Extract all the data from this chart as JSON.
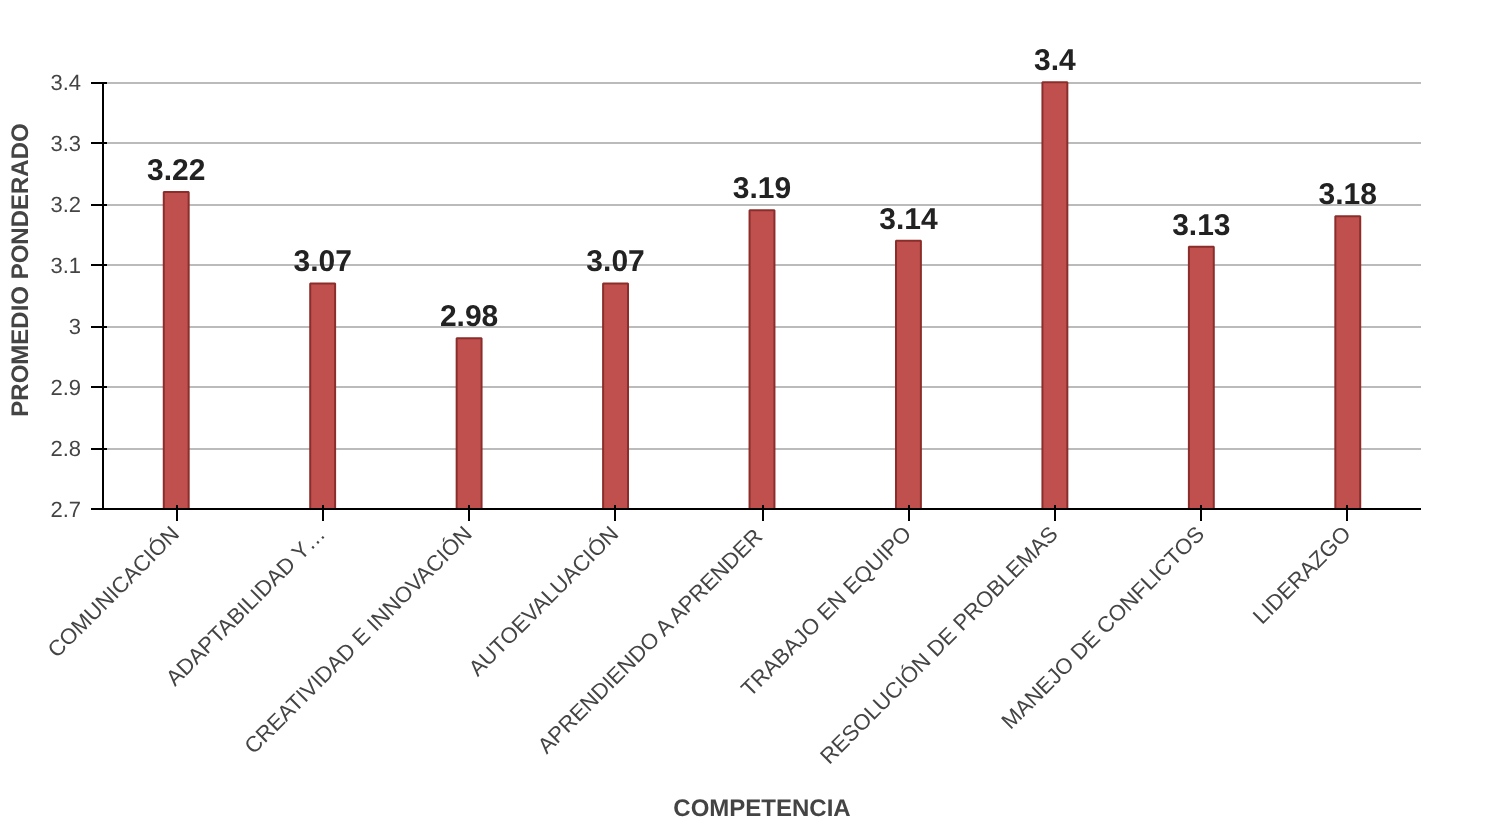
{
  "chart_data": {
    "type": "bar",
    "xlabel": "COMPETENCIA",
    "ylabel": "PROMEDIO PONDERADO",
    "categories": [
      "COMUNICACIÓN",
      "ADAPTABILIDAD Y…",
      "CREATIVIDAD E INNOVACIÓN",
      "AUTOEVALUACIÓN",
      "APRENDIENDO A APRENDER",
      "TRABAJO EN EQUIPO",
      "RESOLUCIÓN DE PROBLEMAS",
      "MANEJO DE CONFLICTOS",
      "LIDERAZGO"
    ],
    "values": [
      3.22,
      3.07,
      2.98,
      3.07,
      3.19,
      3.14,
      3.4,
      3.13,
      3.18
    ],
    "color": "#c0504d",
    "ylim": [
      2.7,
      3.4
    ],
    "yticks": [
      2.7,
      2.8,
      2.9,
      3,
      3.1,
      3.2,
      3.3,
      3.4
    ],
    "grid": "y",
    "data_labels": true
  }
}
